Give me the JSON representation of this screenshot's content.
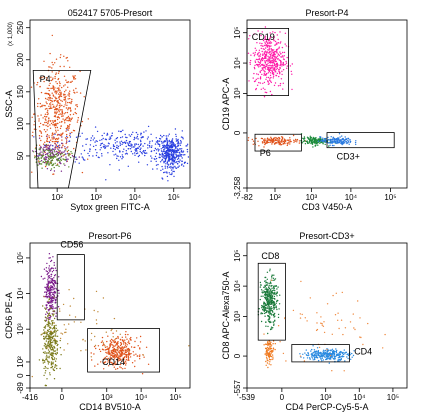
{
  "chart_data": [
    {
      "type": "scatter",
      "title": "052417 5705-Presort",
      "xlabel": "Sytox green FITC-A",
      "ylabel": "SSC-A",
      "yunit": "(x 1,000)",
      "xscale": "log",
      "yscale": "linear",
      "xlim": [
        20,
        262144
      ],
      "ylim": [
        0,
        262
      ],
      "xticks": [
        {
          "value": 100,
          "label": "10²"
        },
        {
          "value": 1000,
          "label": "10³"
        },
        {
          "value": 10000,
          "label": "10⁴"
        },
        {
          "value": 100000,
          "label": "10⁵"
        }
      ],
      "yticks": [
        50,
        100,
        150,
        200,
        250
      ],
      "gates": [
        "P4"
      ]
    },
    {
      "type": "scatter",
      "title": "Presort-P4",
      "xlabel": "CD3 V450-A",
      "ylabel": "CD19 APC-A",
      "xscale": "biexponential",
      "yscale": "biexponential",
      "xlim": [
        -82,
        262144
      ],
      "ylim": [
        -3258,
        262144
      ],
      "xticks": [
        -82,
        {
          "value": 100,
          "label": "10²"
        },
        {
          "value": 1000,
          "label": "10³"
        },
        {
          "value": 10000,
          "label": "10⁴"
        },
        {
          "value": 100000,
          "label": "10⁵"
        }
      ],
      "yticks": [
        {
          "value": -3258,
          "label": "-3,258"
        },
        0,
        {
          "value": 1000,
          "label": "10³"
        },
        {
          "value": 10000,
          "label": "10⁴"
        },
        {
          "value": 100000,
          "label": "10⁵"
        }
      ],
      "gates": [
        "CD19",
        "P6",
        "CD3+"
      ]
    },
    {
      "type": "scatter",
      "title": "Presort-P6",
      "xlabel": "CD14 BV510-A",
      "ylabel": "CD56 PE-A",
      "xscale": "biexponential",
      "yscale": "biexponential",
      "xlim": [
        -416,
        262144
      ],
      "ylim": [
        -89,
        262144
      ],
      "xticks": [
        -416,
        0,
        {
          "value": 1000,
          "label": "10³"
        },
        {
          "value": 10000,
          "label": "10⁴"
        },
        {
          "value": 100000,
          "label": "10⁵"
        }
      ],
      "yticks": [
        -89,
        0,
        {
          "value": 100,
          "label": "10²"
        },
        {
          "value": 1000,
          "label": "10³"
        },
        {
          "value": 10000,
          "label": "10⁴"
        },
        {
          "value": 100000,
          "label": "10⁵"
        }
      ],
      "gates": [
        "CD56",
        "CD14"
      ]
    },
    {
      "type": "scatter",
      "title": "Presort-CD3+",
      "xlabel": "CD4 PerCP-Cy5-5-A",
      "ylabel": "CD8 APC-Alexa750-A",
      "xscale": "biexponential",
      "yscale": "biexponential",
      "xlim": [
        -539,
        262144
      ],
      "ylim": [
        -557,
        262144
      ],
      "xticks": [
        -539,
        0,
        {
          "value": 1000,
          "label": "10³"
        },
        {
          "value": 10000,
          "label": "10⁴"
        },
        {
          "value": 100000,
          "label": "10⁵"
        }
      ],
      "yticks": [
        -557,
        0,
        {
          "value": 1000,
          "label": "10³"
        },
        {
          "value": 10000,
          "label": "10⁴"
        },
        {
          "value": 100000,
          "label": "10⁵"
        }
      ],
      "gates": [
        "CD8",
        "CD4"
      ]
    }
  ]
}
